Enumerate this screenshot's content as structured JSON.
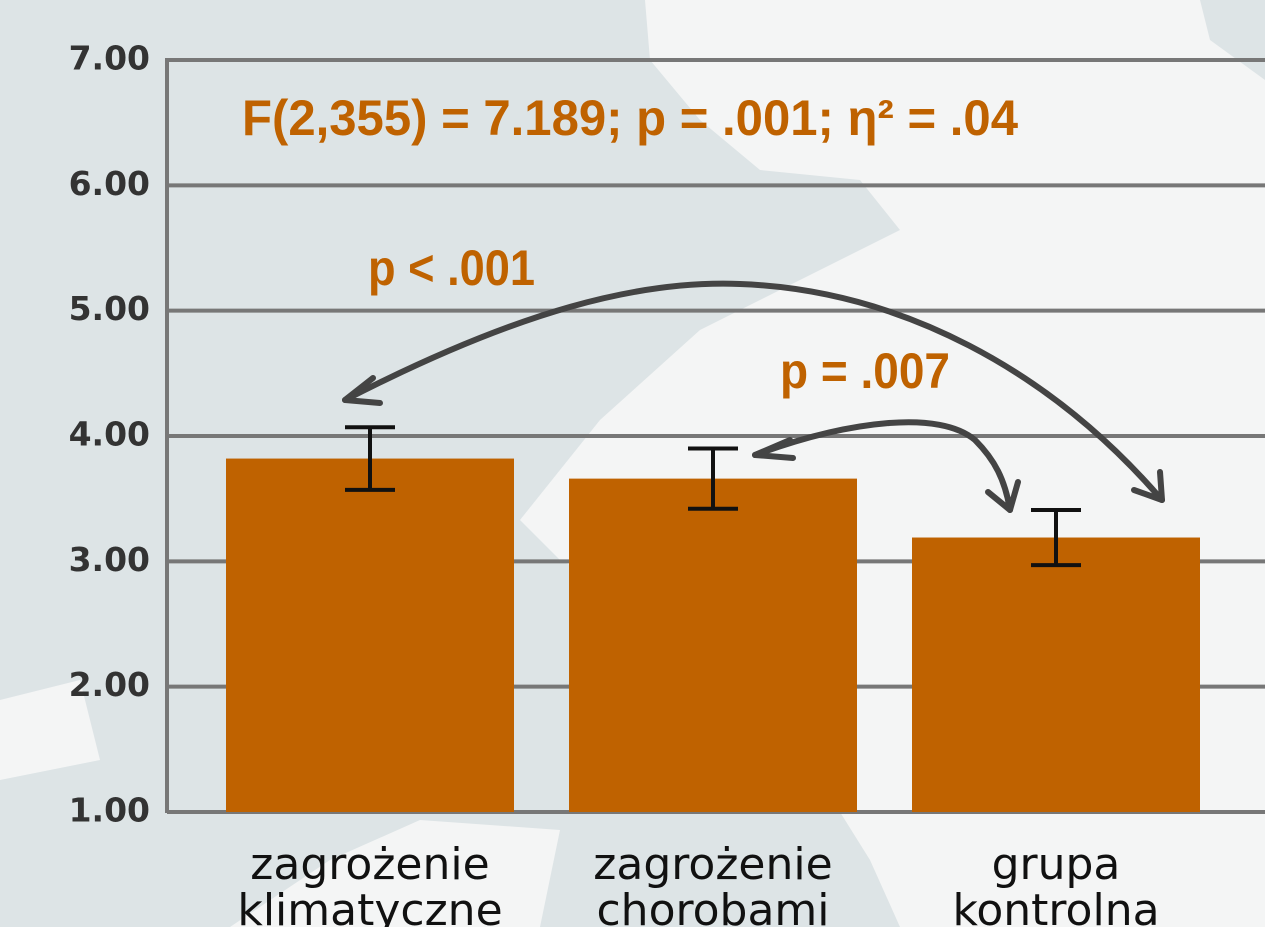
{
  "chart_data": {
    "type": "bar",
    "categories": [
      "zagrożenie klimatyczne",
      "zagrożenie chorobami",
      "grupa kontrolna"
    ],
    "values": [
      3.82,
      3.66,
      3.19
    ],
    "errors": [
      0.25,
      0.24,
      0.22
    ],
    "color": "#bf6200",
    "ylim": [
      1,
      7
    ],
    "yticks": [
      {
        "value": 1,
        "label": "1.00"
      },
      {
        "value": 2,
        "label": "2.00"
      },
      {
        "value": 3,
        "label": "3.00"
      },
      {
        "value": 4,
        "label": "4.00"
      },
      {
        "value": 5,
        "label": "5.00"
      },
      {
        "value": 6,
        "label": "6.00"
      },
      {
        "value": 7,
        "label": "7.00"
      }
    ],
    "grid": true,
    "annotations": [
      "F(2,355) = 7.189; p = .001; η² = .04",
      "p < .001",
      "p = .007"
    ]
  }
}
